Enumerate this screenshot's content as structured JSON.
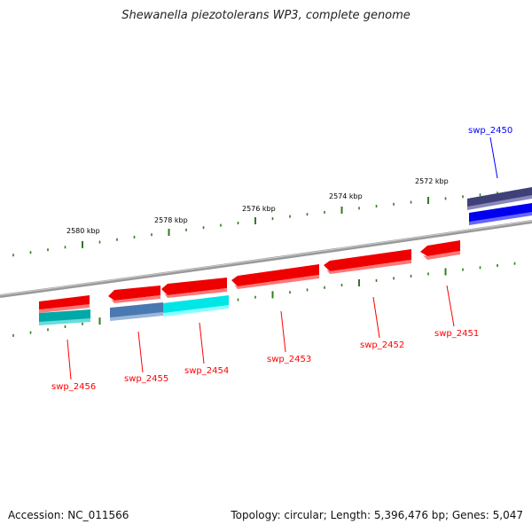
{
  "title": "Shewanella piezotolerans WP3, complete genome",
  "footer": {
    "accession": "Accession: NC_011566",
    "info": "Topology: circular; Length: 5,396,476 bp; Genes: 5,047"
  },
  "scale_labels": [
    "2572 kbp",
    "2574 kbp",
    "2576 kbp",
    "2578 kbp",
    "2580 kbp"
  ],
  "genes": [
    {
      "name": "swp_2450",
      "strand": "forward",
      "color": "#0000ff"
    },
    {
      "name": "swp_2451",
      "strand": "reverse",
      "color": "#ff0000"
    },
    {
      "name": "swp_2452",
      "strand": "reverse",
      "color": "#ff0000"
    },
    {
      "name": "swp_2453",
      "strand": "reverse",
      "color": "#ff0000"
    },
    {
      "name": "swp_2454",
      "strand": "reverse",
      "color": "#ff0000"
    },
    {
      "name": "swp_2455",
      "strand": "reverse",
      "color": "#ff0000"
    },
    {
      "name": "swp_2456",
      "strand": "reverse",
      "color": "#ff0000"
    }
  ],
  "colors": {
    "backbone": "#888888",
    "forward_cds": "#0000ff",
    "forward_feature": "#3a3a80",
    "reverse_cds": "#ff0000",
    "reverse_feature": "#00e0e0",
    "tick": "#2e7d1e"
  }
}
